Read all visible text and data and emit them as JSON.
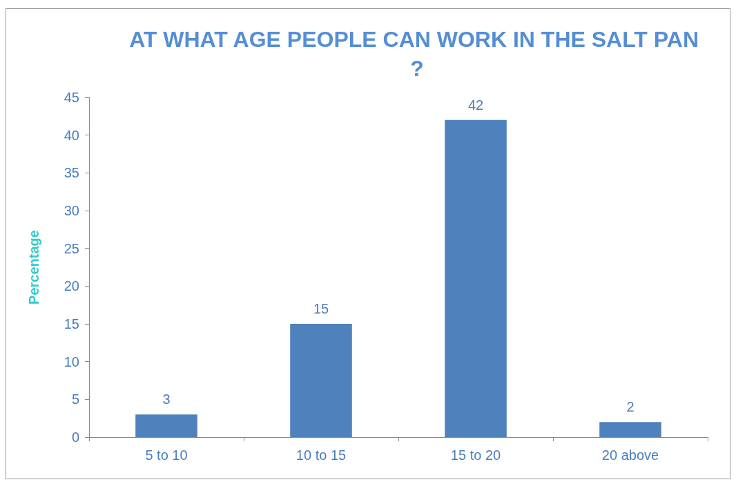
{
  "chart_data": {
    "type": "bar",
    "title": "AT WHAT AGE PEOPLE CAN WORK IN THE SALT PAN ?",
    "ylabel": "Percentage",
    "categories": [
      "5 to 10",
      "10 to 15",
      "15 to 20",
      "20 above"
    ],
    "values": [
      3,
      15,
      42,
      2
    ],
    "color": "#4f81bd",
    "ylim": [
      0,
      45
    ],
    "yticks": [
      0,
      5,
      10,
      15,
      20,
      25,
      30,
      35,
      40,
      45
    ],
    "grid": false,
    "data_labels": true
  }
}
